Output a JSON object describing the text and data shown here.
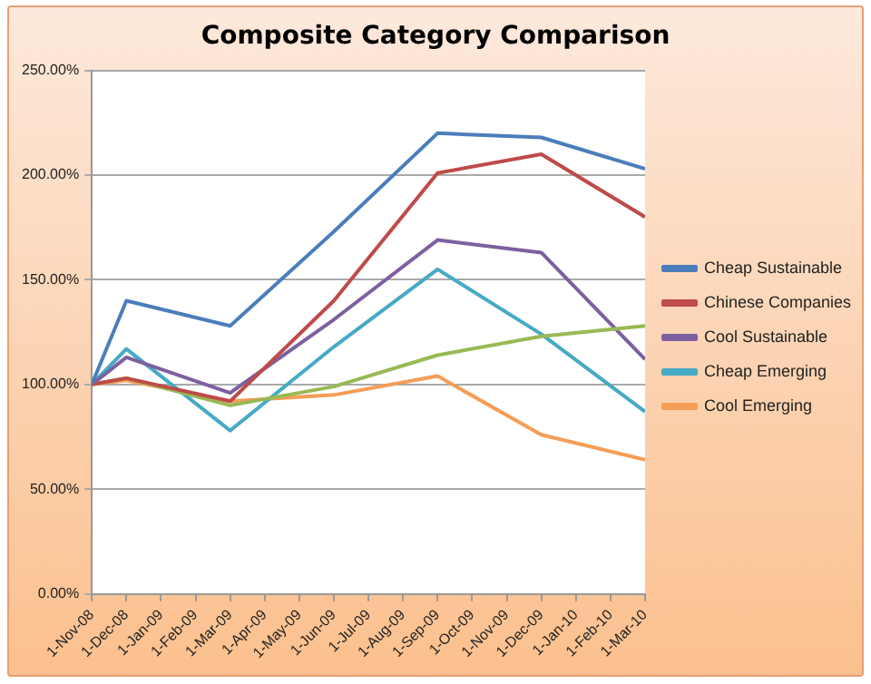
{
  "chart_data": {
    "type": "line",
    "title": "Composite Category Comparison",
    "x": [
      "2008-11",
      "2008-12",
      "2009-03",
      "2009-06",
      "2009-09",
      "2009-12",
      "2010-03"
    ],
    "series": [
      {
        "name": "Cheap Sustainable",
        "color": "#4a7ebb",
        "values": [
          100,
          140,
          128,
          173,
          220,
          218,
          203
        ]
      },
      {
        "name": "Chinese Companies",
        "color": "#be4b48",
        "values": [
          100,
          103,
          92,
          140,
          201,
          210,
          180
        ]
      },
      {
        "color": "#98b954",
        "values": [
          100,
          103,
          90,
          99,
          114,
          123,
          128
        ]
      },
      {
        "name": "Cool Sustainable",
        "color": "#7d60a0",
        "values": [
          100,
          113,
          96,
          131,
          169,
          163,
          112
        ]
      },
      {
        "name": "Cheap Emerging",
        "color": "#46aac5",
        "values": [
          100,
          117,
          78,
          118,
          155,
          124,
          87
        ]
      },
      {
        "name": "Cool Emerging",
        "color": "#f59d56",
        "values": [
          100,
          102,
          92,
          95,
          104,
          76,
          64
        ]
      }
    ],
    "xlim": [
      "2008-11",
      "2010-03"
    ],
    "xticks": [
      {
        "value": "2008-11",
        "label": "1-Nov-08"
      },
      {
        "value": "2008-12",
        "label": "1-Dec-08"
      },
      {
        "value": "2009-01",
        "label": "1-Jan-09"
      },
      {
        "value": "2009-02",
        "label": "1-Feb-09"
      },
      {
        "value": "2009-03",
        "label": "1-Mar-09"
      },
      {
        "value": "2009-04",
        "label": "1-Apr-09"
      },
      {
        "value": "2009-05",
        "label": "1-May-09"
      },
      {
        "value": "2009-06",
        "label": "1-Jun-09"
      },
      {
        "value": "2009-07",
        "label": "1-Jul-09"
      },
      {
        "value": "2009-08",
        "label": "1-Aug-09"
      },
      {
        "value": "2009-09",
        "label": "1-Sep-09"
      },
      {
        "value": "2009-10",
        "label": "1-Oct-09"
      },
      {
        "value": "2009-11",
        "label": "1-Nov-09"
      },
      {
        "value": "2009-12",
        "label": "1-Dec-09"
      },
      {
        "value": "2010-01",
        "label": "1-Jan-10"
      },
      {
        "value": "2010-02",
        "label": "1-Feb-10"
      },
      {
        "value": "2010-03",
        "label": "1-Mar-10"
      }
    ],
    "ylim": [
      0,
      250
    ],
    "yticks": [
      {
        "value": 0,
        "label": "0.00%"
      },
      {
        "value": 50,
        "label": "50.00%"
      },
      {
        "value": 100,
        "label": "100.00%"
      },
      {
        "value": 150,
        "label": "150.00%"
      },
      {
        "value": 200,
        "label": "200.00%"
      },
      {
        "value": 250,
        "label": "250.00%"
      }
    ],
    "grid": "y",
    "legend": "right",
    "marker": "none",
    "line_style": "solid"
  }
}
